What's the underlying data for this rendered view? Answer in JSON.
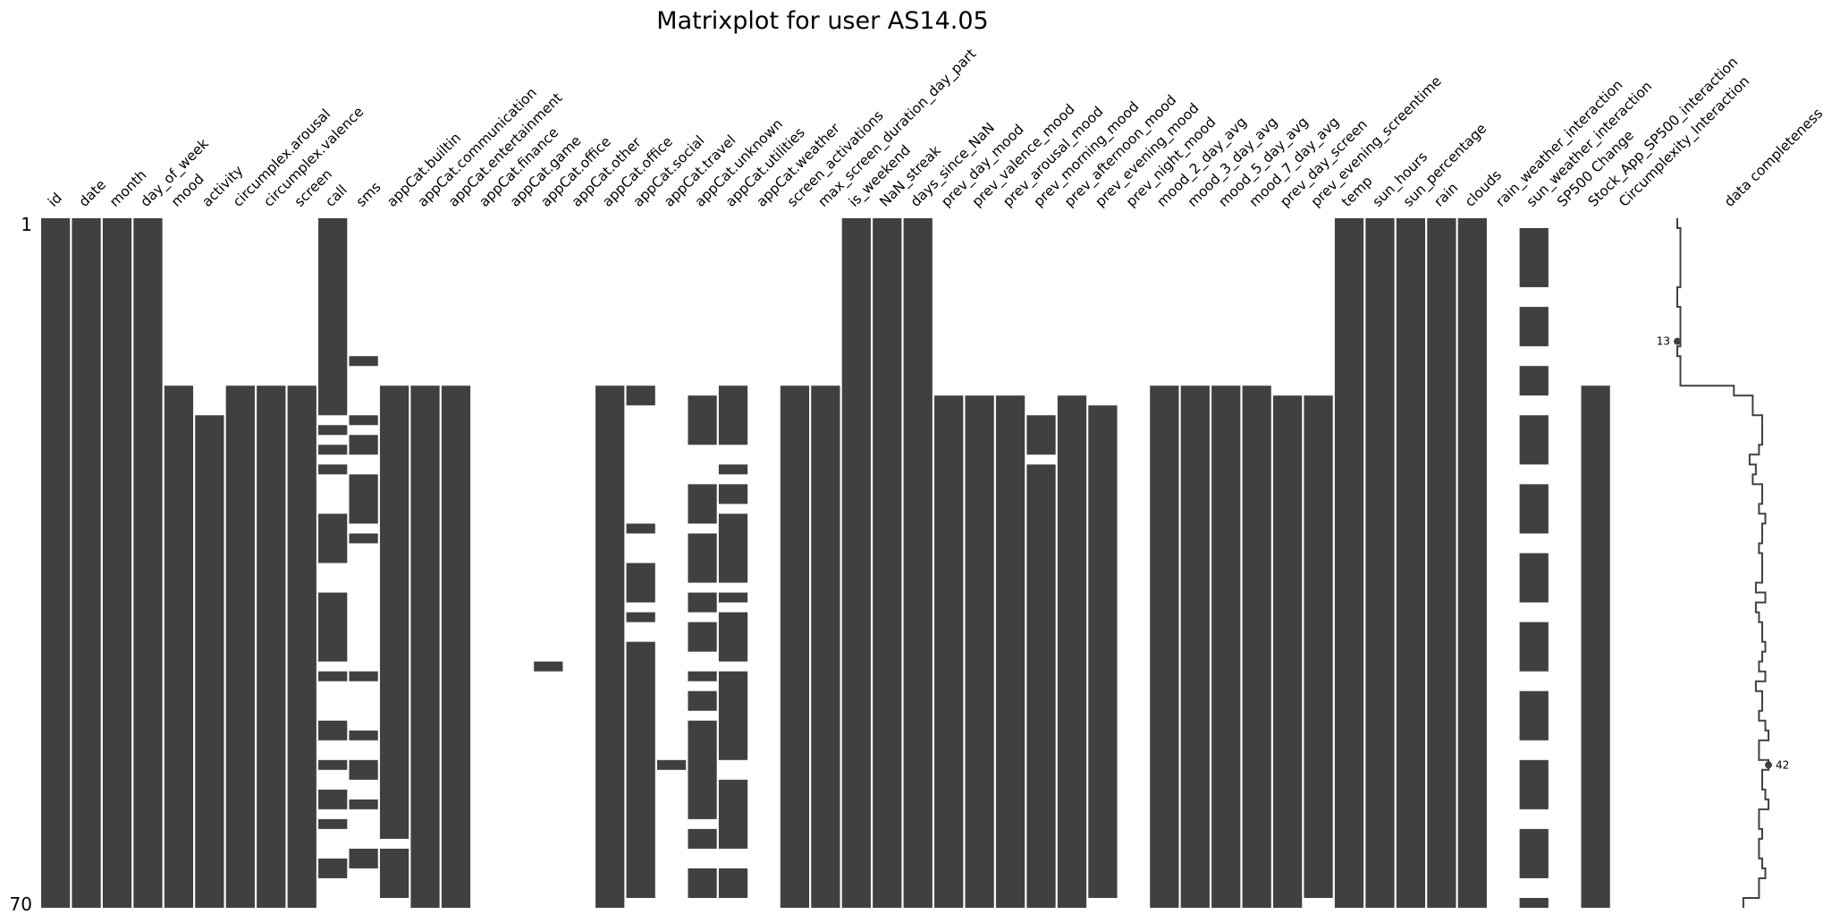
{
  "chart_data": {
    "type": "heatmap",
    "subtype": "missingno-matrix",
    "title": "Matrixplot for user AS14.05",
    "n_rows": 70,
    "row_labels": [
      "1",
      "70"
    ],
    "fill_color": "#404040",
    "columns": [
      {
        "name": "id",
        "present": [
          [
            1,
            70
          ]
        ]
      },
      {
        "name": "date",
        "present": [
          [
            1,
            70
          ]
        ]
      },
      {
        "name": "month",
        "present": [
          [
            1,
            70
          ]
        ]
      },
      {
        "name": "day_of_week",
        "present": [
          [
            1,
            70
          ]
        ]
      },
      {
        "name": "mood",
        "present": [
          [
            18,
            70
          ]
        ]
      },
      {
        "name": "activity",
        "present": [
          [
            21,
            70
          ]
        ]
      },
      {
        "name": "circumplex.arousal",
        "present": [
          [
            18,
            70
          ]
        ]
      },
      {
        "name": "circumplex.valence",
        "present": [
          [
            18,
            70
          ]
        ]
      },
      {
        "name": "screen",
        "present": [
          [
            18,
            70
          ]
        ]
      },
      {
        "name": "call",
        "present": [
          [
            1,
            20
          ],
          [
            22,
            22
          ],
          [
            24,
            24
          ],
          [
            26,
            26
          ],
          [
            31,
            35
          ],
          [
            39,
            45
          ],
          [
            47,
            47
          ],
          [
            52,
            53
          ],
          [
            56,
            56
          ],
          [
            59,
            60
          ],
          [
            62,
            62
          ],
          [
            66,
            67
          ]
        ]
      },
      {
        "name": "sms",
        "present": [
          [
            15,
            15
          ],
          [
            21,
            21
          ],
          [
            23,
            24
          ],
          [
            27,
            31
          ],
          [
            33,
            33
          ],
          [
            47,
            47
          ],
          [
            53,
            53
          ],
          [
            56,
            57
          ],
          [
            60,
            60
          ],
          [
            65,
            66
          ]
        ]
      },
      {
        "name": "appCat.builtin",
        "present": [
          [
            18,
            63
          ],
          [
            65,
            69
          ]
        ]
      },
      {
        "name": "appCat.communication",
        "present": [
          [
            18,
            70
          ]
        ]
      },
      {
        "name": "appCat.entertainment",
        "present": [
          [
            18,
            70
          ]
        ]
      },
      {
        "name": "appCat.finance",
        "present": []
      },
      {
        "name": "appCat.game",
        "present": []
      },
      {
        "name": "appCat.office",
        "present": [
          [
            46,
            46
          ]
        ]
      },
      {
        "name": "appCat.other",
        "present": []
      },
      {
        "name": "appCat.office",
        "present": [
          [
            18,
            70
          ]
        ]
      },
      {
        "name": "appCat.social",
        "present": [
          [
            18,
            19
          ],
          [
            32,
            32
          ],
          [
            36,
            39
          ],
          [
            41,
            41
          ],
          [
            44,
            69
          ]
        ]
      },
      {
        "name": "appCat.travel",
        "present": [
          [
            56,
            56
          ]
        ]
      },
      {
        "name": "appCat.unknown",
        "present": [
          [
            19,
            23
          ],
          [
            28,
            31
          ],
          [
            33,
            37
          ],
          [
            39,
            40
          ],
          [
            42,
            44
          ],
          [
            47,
            47
          ],
          [
            49,
            50
          ],
          [
            52,
            61
          ],
          [
            63,
            64
          ],
          [
            67,
            69
          ]
        ]
      },
      {
        "name": "appCat.utilities",
        "present": [
          [
            18,
            23
          ],
          [
            26,
            26
          ],
          [
            28,
            29
          ],
          [
            31,
            37
          ],
          [
            39,
            39
          ],
          [
            41,
            45
          ],
          [
            47,
            55
          ],
          [
            58,
            64
          ],
          [
            67,
            69
          ]
        ]
      },
      {
        "name": "appCat.weather",
        "present": []
      },
      {
        "name": "screen_activations",
        "present": [
          [
            18,
            70
          ]
        ]
      },
      {
        "name": "max_screen_duration_day_part",
        "present": [
          [
            18,
            70
          ]
        ]
      },
      {
        "name": "is_weekend",
        "present": [
          [
            1,
            70
          ]
        ]
      },
      {
        "name": "NaN_streak",
        "present": [
          [
            1,
            70
          ]
        ]
      },
      {
        "name": "days_since_NaN",
        "present": [
          [
            1,
            70
          ]
        ]
      },
      {
        "name": "prev_day_mood",
        "present": [
          [
            19,
            70
          ]
        ]
      },
      {
        "name": "prev_valence_mood",
        "present": [
          [
            19,
            70
          ]
        ]
      },
      {
        "name": "prev_arousal_mood",
        "present": [
          [
            19,
            70
          ]
        ]
      },
      {
        "name": "prev_morning_mood",
        "present": [
          [
            21,
            24
          ],
          [
            26,
            70
          ]
        ]
      },
      {
        "name": "prev_afternoon_mood",
        "present": [
          [
            19,
            70
          ]
        ]
      },
      {
        "name": "prev_evening_mood",
        "present": [
          [
            20,
            69
          ]
        ]
      },
      {
        "name": "prev_night_mood",
        "present": []
      },
      {
        "name": "mood_2_day_avg",
        "present": [
          [
            18,
            70
          ]
        ]
      },
      {
        "name": "mood_3_day_avg",
        "present": [
          [
            18,
            70
          ]
        ]
      },
      {
        "name": "mood_5_day_avg",
        "present": [
          [
            18,
            70
          ]
        ]
      },
      {
        "name": "mood_7_day_avg",
        "present": [
          [
            18,
            70
          ]
        ]
      },
      {
        "name": "prev_day_screen",
        "present": [
          [
            19,
            70
          ]
        ]
      },
      {
        "name": "prev_evening_screentime",
        "present": [
          [
            19,
            69
          ]
        ]
      },
      {
        "name": "temp",
        "present": [
          [
            1,
            70
          ]
        ]
      },
      {
        "name": "sun_hours",
        "present": [
          [
            1,
            70
          ]
        ]
      },
      {
        "name": "sun_percentage",
        "present": [
          [
            1,
            70
          ]
        ]
      },
      {
        "name": "rain",
        "present": [
          [
            1,
            70
          ]
        ]
      },
      {
        "name": "clouds",
        "present": [
          [
            1,
            70
          ]
        ]
      },
      {
        "name": "rain_weather_interaction",
        "present": []
      },
      {
        "name": "sun_weather_interaction",
        "present": [
          [
            2,
            7
          ],
          [
            10,
            13
          ],
          [
            16,
            18
          ],
          [
            21,
            25
          ],
          [
            28,
            32
          ],
          [
            35,
            39
          ],
          [
            42,
            46
          ],
          [
            49,
            53
          ],
          [
            56,
            60
          ],
          [
            63,
            67
          ],
          [
            70,
            70
          ]
        ]
      },
      {
        "name": "SP500 Change",
        "present": []
      },
      {
        "name": "Stock_App_SP500_interaction",
        "present": [
          [
            18,
            70
          ]
        ]
      },
      {
        "name": "Circumplexity_Interaction",
        "present": []
      }
    ],
    "sparkline": {
      "label": "data completeness",
      "min": 13,
      "min_row": 13,
      "max": 42,
      "max_row": 56
    }
  }
}
